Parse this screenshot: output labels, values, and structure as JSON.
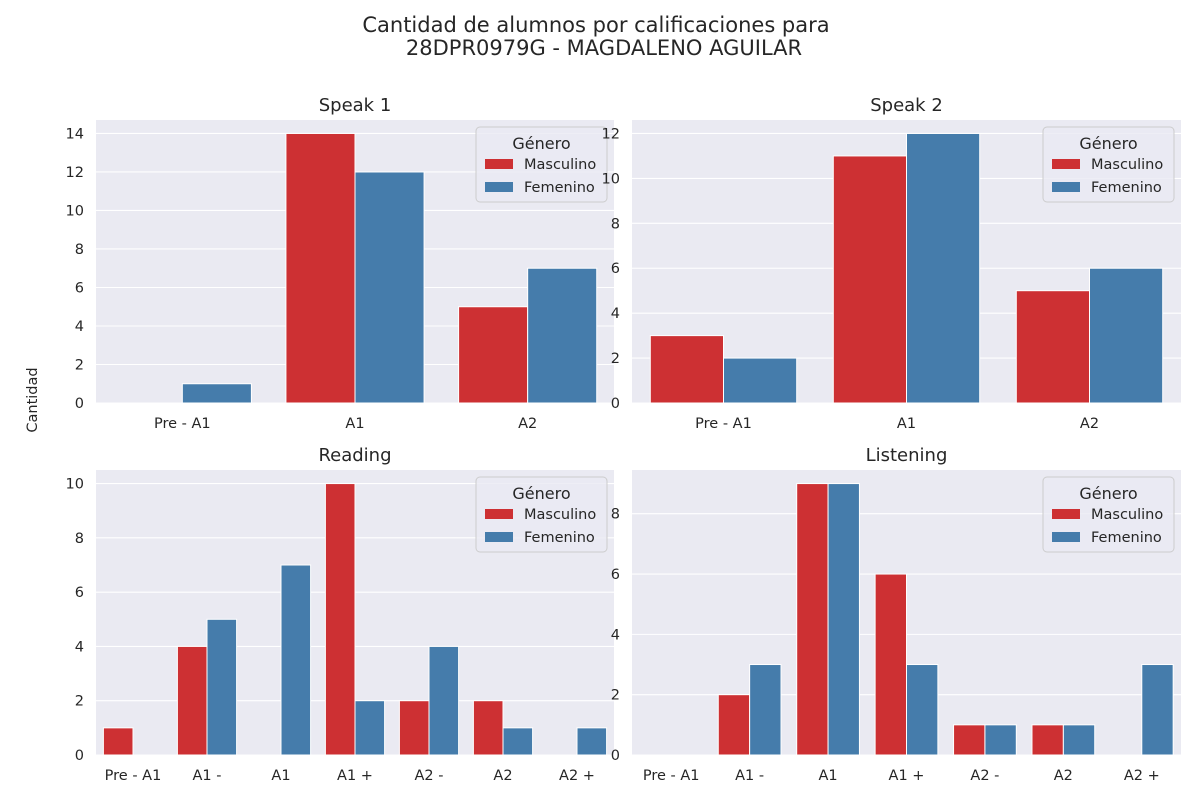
{
  "figure": {
    "title_line1": "Cantidad de alumnos por calificaciones para",
    "title_line2": "28DPR0979G - MAGDALENO AGUILAR",
    "ylabel": "Cantidad"
  },
  "colors": {
    "masculino": "#cd3033",
    "femenino": "#457cab",
    "plot_bg": "#eaeaf2",
    "grid": "#ffffff"
  },
  "chart_data": [
    {
      "type": "bar",
      "title": "Speak 1",
      "categories": [
        "Pre - A1",
        "A1",
        "A2"
      ],
      "series": [
        {
          "name": "Masculino",
          "values": [
            0,
            14,
            5
          ]
        },
        {
          "name": "Femenino",
          "values": [
            1,
            12,
            7
          ]
        }
      ],
      "ylim": [
        0,
        14.7
      ],
      "yticks": [
        0,
        2,
        4,
        6,
        8,
        10,
        12,
        14
      ],
      "legend": {
        "title": "Género",
        "placement": "top-right"
      },
      "grid": true
    },
    {
      "type": "bar",
      "title": "Speak 2",
      "categories": [
        "Pre - A1",
        "A1",
        "A2"
      ],
      "series": [
        {
          "name": "Masculino",
          "values": [
            3,
            11,
            5
          ]
        },
        {
          "name": "Femenino",
          "values": [
            2,
            12,
            6
          ]
        }
      ],
      "ylim": [
        0,
        12.6
      ],
      "yticks": [
        0,
        2,
        4,
        6,
        8,
        10,
        12
      ],
      "legend": {
        "title": "Género",
        "placement": "top-right"
      },
      "grid": true
    },
    {
      "type": "bar",
      "title": "Reading",
      "categories": [
        "Pre - A1",
        "A1 -",
        "A1",
        "A1 +",
        "A2 -",
        "A2",
        "A2 +"
      ],
      "series": [
        {
          "name": "Masculino",
          "values": [
            1,
            4,
            0,
            10,
            2,
            2,
            0
          ]
        },
        {
          "name": "Femenino",
          "values": [
            0,
            5,
            7,
            2,
            4,
            1,
            1
          ]
        }
      ],
      "ylim": [
        0,
        10.5
      ],
      "yticks": [
        0,
        2,
        4,
        6,
        8,
        10
      ],
      "legend": {
        "title": "Género",
        "placement": "top-right"
      },
      "grid": true
    },
    {
      "type": "bar",
      "title": "Listening",
      "categories": [
        "Pre - A1",
        "A1 -",
        "A1",
        "A1 +",
        "A2 -",
        "A2",
        "A2 +"
      ],
      "series": [
        {
          "name": "Masculino",
          "values": [
            0,
            2,
            9,
            6,
            1,
            1,
            0
          ]
        },
        {
          "name": "Femenino",
          "values": [
            0,
            3,
            9,
            3,
            1,
            1,
            3
          ]
        }
      ],
      "ylim": [
        0,
        9.45
      ],
      "yticks": [
        0,
        2,
        4,
        6,
        8
      ],
      "legend": {
        "title": "Género",
        "placement": "top-right"
      },
      "grid": true
    }
  ]
}
